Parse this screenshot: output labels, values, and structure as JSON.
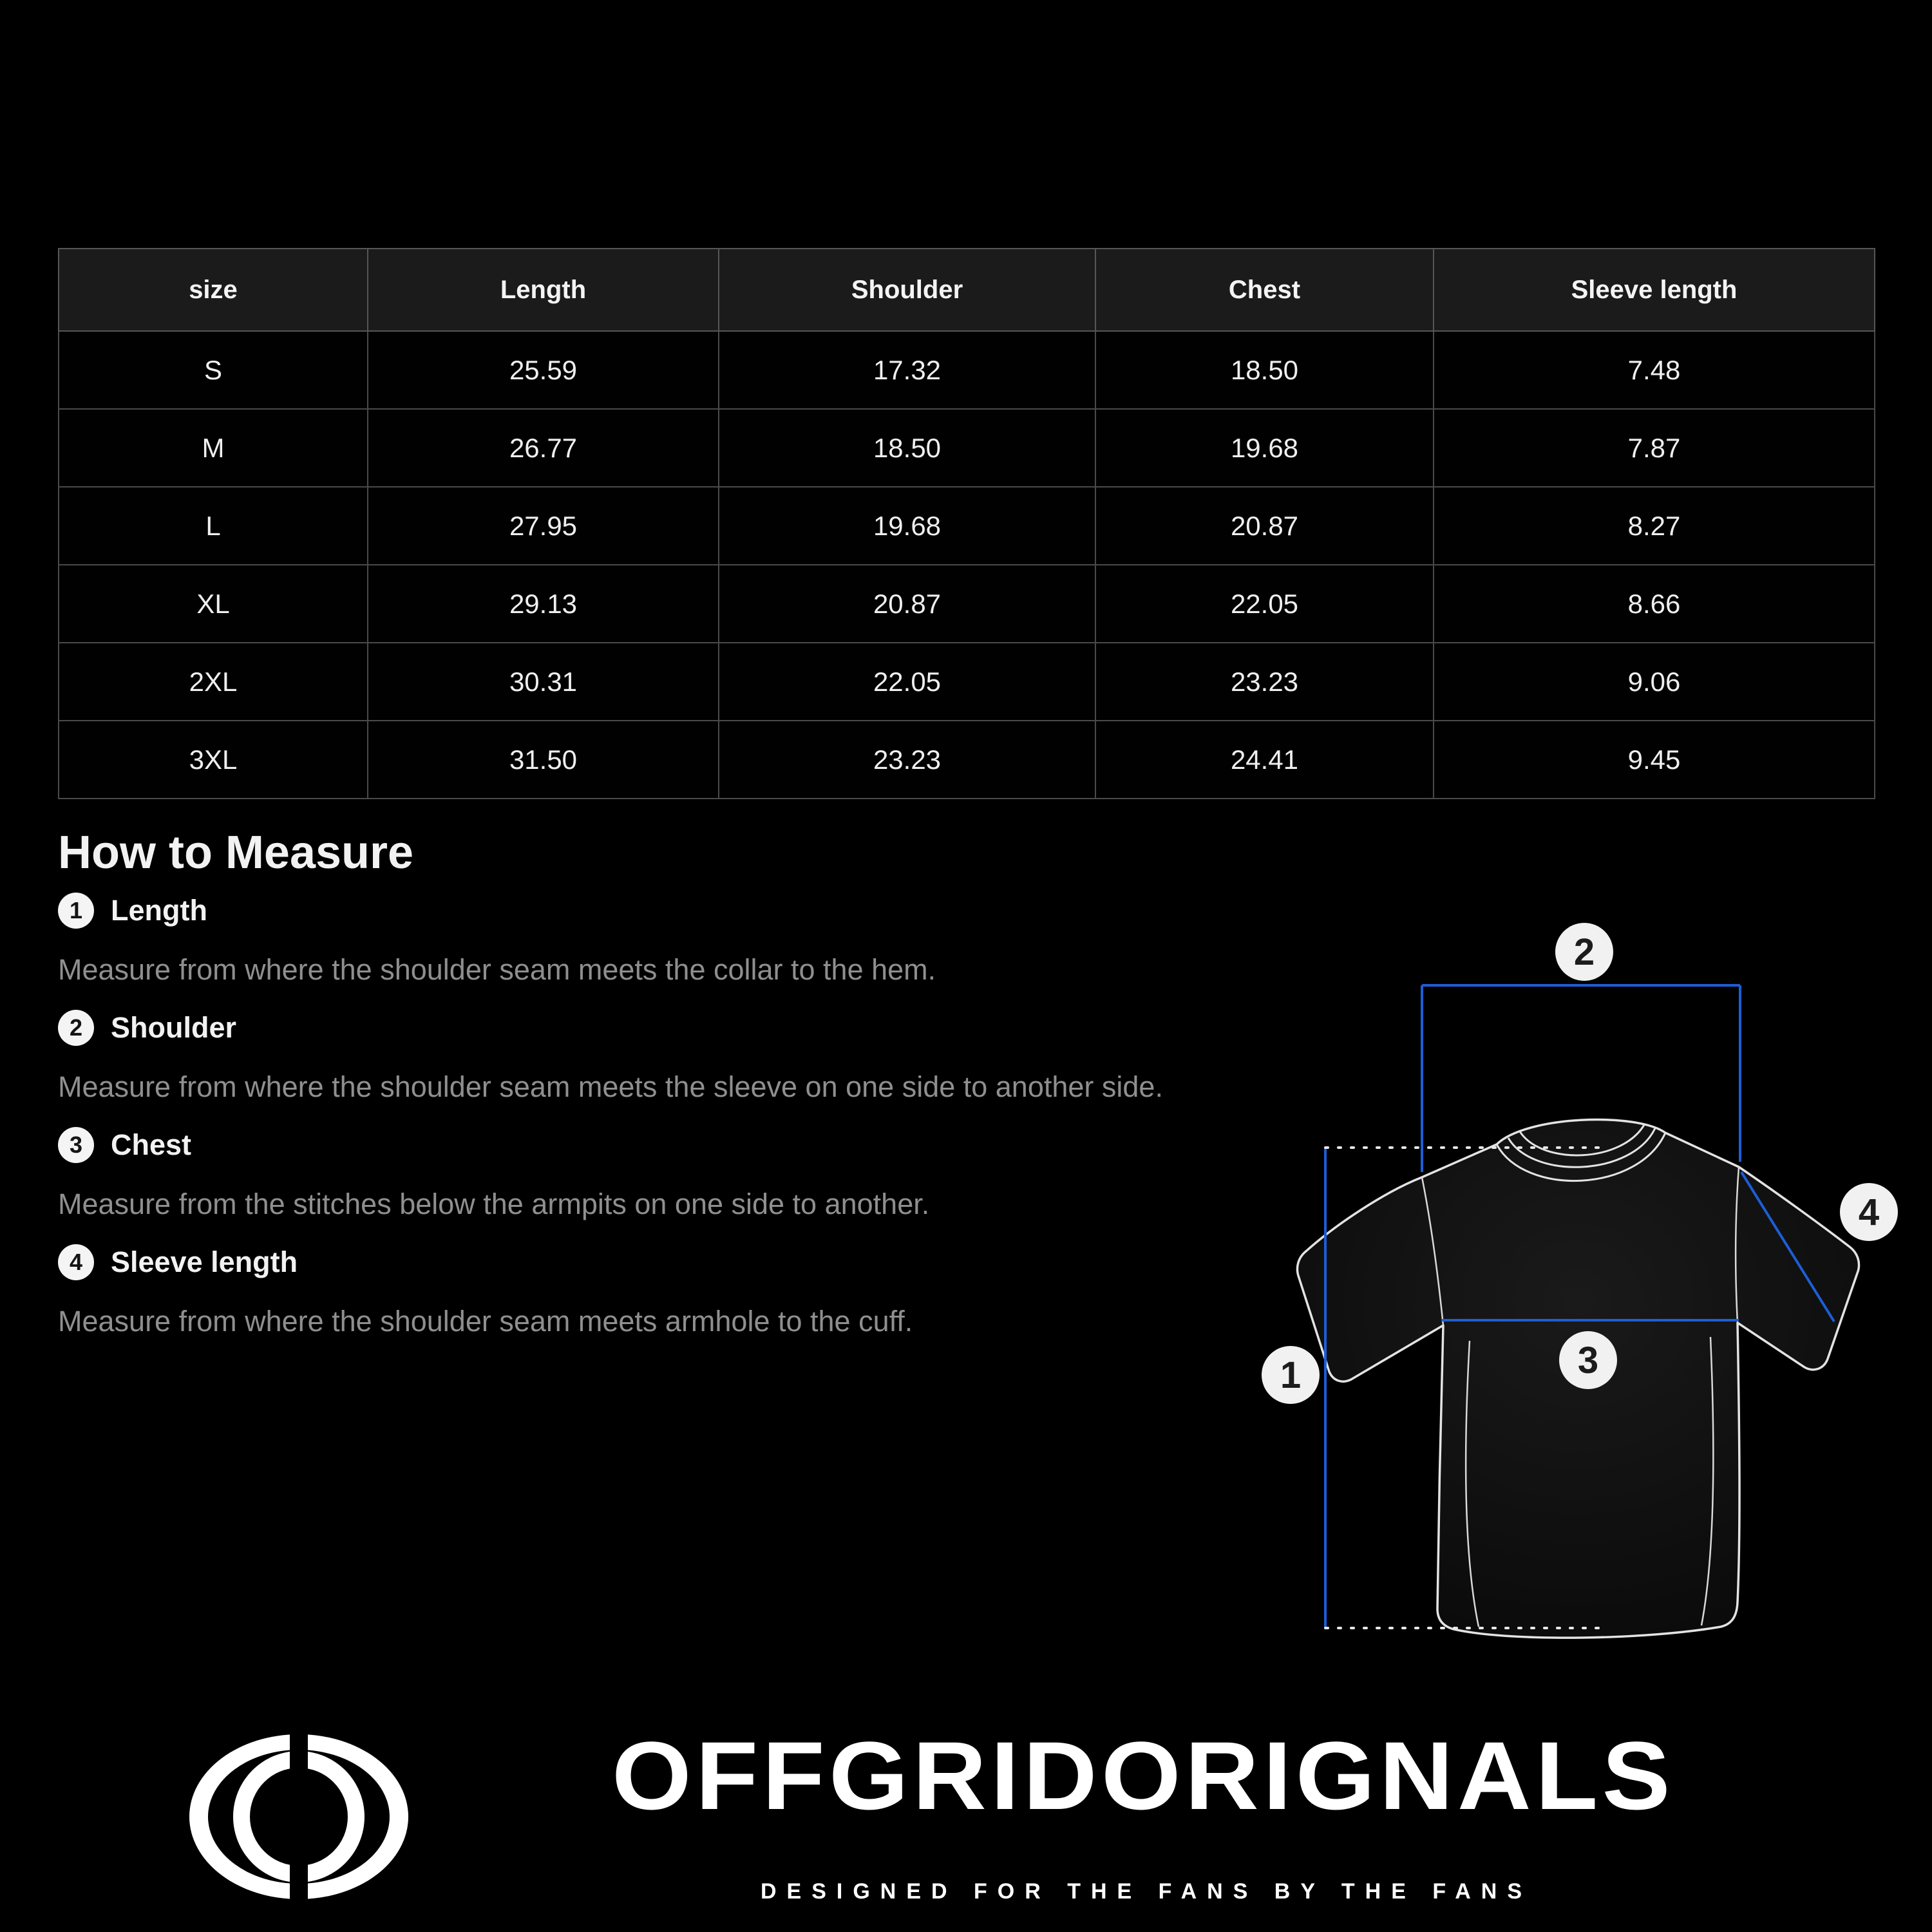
{
  "page": {
    "background": "#000000",
    "accent_blue": "#1e5ed6"
  },
  "size_table": {
    "columns": [
      "size",
      "Length",
      "Shoulder",
      "Chest",
      "Sleeve length"
    ],
    "rows": [
      [
        "S",
        "25.59",
        "17.32",
        "18.50",
        "7.48"
      ],
      [
        "M",
        "26.77",
        "18.50",
        "19.68",
        "7.87"
      ],
      [
        "L",
        "27.95",
        "19.68",
        "20.87",
        "8.27"
      ],
      [
        "XL",
        "29.13",
        "20.87",
        "22.05",
        "8.66"
      ],
      [
        "2XL",
        "30.31",
        "22.05",
        "23.23",
        "9.06"
      ],
      [
        "3XL",
        "31.50",
        "23.23",
        "24.41",
        "9.45"
      ]
    ]
  },
  "how_to_measure": {
    "title": "How to Measure",
    "steps": [
      {
        "num": "1",
        "label": "Length",
        "description": "Measure from where the shoulder seam meets the collar to the hem."
      },
      {
        "num": "2",
        "label": "Shoulder",
        "description": "Measure from where the shoulder seam meets the sleeve on one side to another side."
      },
      {
        "num": "3",
        "label": "Chest",
        "description": "Measure from the stitches below the armpits on one side to another."
      },
      {
        "num": "4",
        "label": "Sleeve length",
        "description": "Measure from where the shoulder seam meets armhole to the cuff."
      }
    ]
  },
  "diagram": {
    "marker_1": "1",
    "marker_2": "2",
    "marker_3": "3",
    "marker_4": "4",
    "accent_color": "#1e5ed6"
  },
  "footer": {
    "brand": "OFFGRIDORIGNALS",
    "tagline": "DESIGNED FOR THE FANS BY THE FANS",
    "logo_icon": "offgrid-eye-logo"
  }
}
